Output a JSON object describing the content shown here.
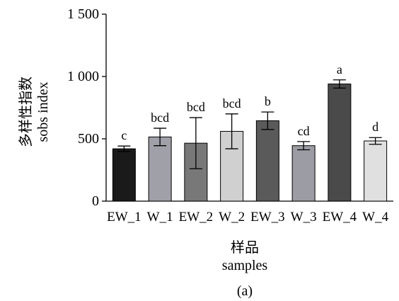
{
  "chart_data": {
    "type": "bar",
    "categories": [
      "EW_1",
      "W_1",
      "EW_2",
      "W_2",
      "EW_3",
      "W_3",
      "EW_4",
      "W_4"
    ],
    "values": [
      420,
      515,
      465,
      560,
      645,
      445,
      940,
      483
    ],
    "errors": [
      22,
      70,
      205,
      140,
      70,
      33,
      33,
      27
    ],
    "labels": [
      "c",
      "bcd",
      "bcd",
      "bcd",
      "b",
      "cd",
      "a",
      "d"
    ],
    "colors": [
      "#1a1a1a",
      "#a0a0a8",
      "#787878",
      "#d0d0d0",
      "#5a5a5a",
      "#9c9ca4",
      "#4a4a4a",
      "#e0e0e0"
    ],
    "ylabel_cn": "多样性指数",
    "ylabel_en": "sobs index",
    "xlabel_cn": "样品",
    "xlabel_en": "samples",
    "panel_label": "(a)",
    "ylim": [
      0,
      1500
    ],
    "yticks": [
      0,
      500,
      1000,
      1500
    ],
    "ytick_labels": [
      "0",
      "500",
      "1 000",
      "1 500"
    ],
    "grid": false
  }
}
